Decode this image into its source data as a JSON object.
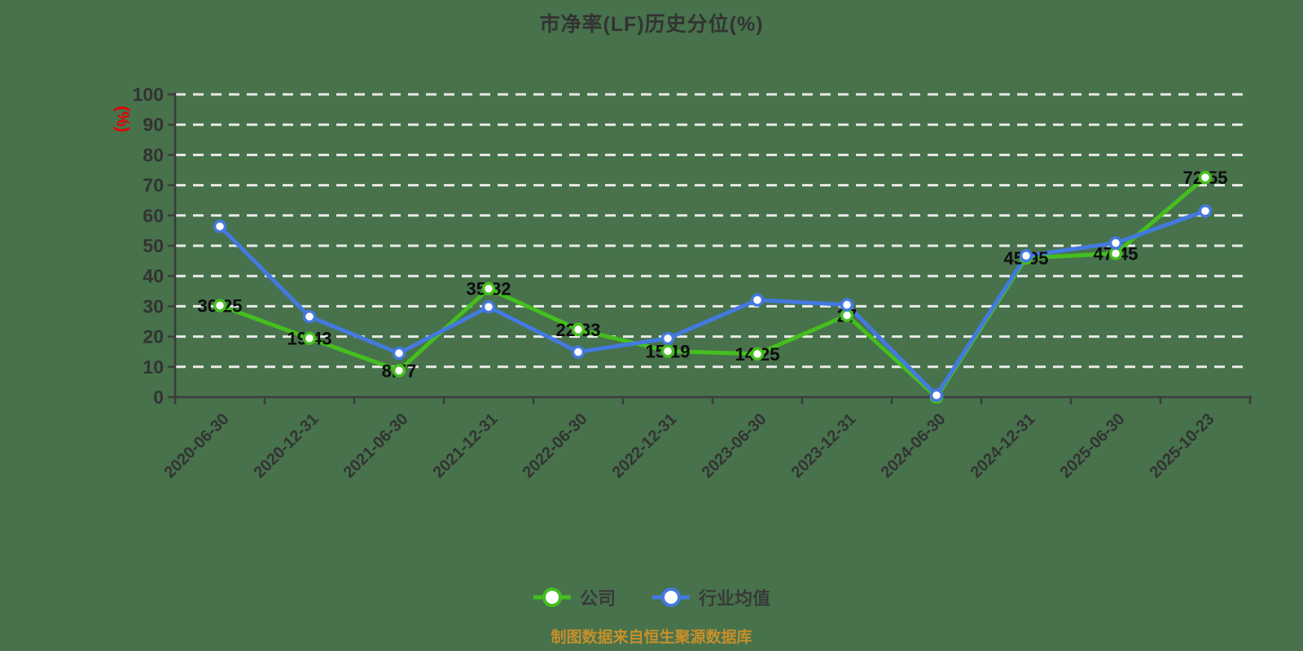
{
  "title": "市净率(LF)历史分位(%)",
  "source_note": "制图数据来自恒生聚源数据库",
  "y_axis": {
    "unit_label": "(%)"
  },
  "colors": {
    "background": "#47724C",
    "company_line": "#45BE1F",
    "industry_line": "#4479DF",
    "gridline": "#F2F2F2",
    "axis": "#3C3C3C",
    "tick_text": "#333333",
    "data_label": "#0D0D0D",
    "y_unit_red": "#E60000",
    "source_orange": "#C78F2B",
    "marker_fill": "#FFFFFF"
  },
  "chart_data": {
    "type": "line",
    "title": "市净率(LF)历史分位(%)",
    "xlabel": "",
    "ylabel": "(%)",
    "ylim": [
      0,
      100
    ],
    "ytick_step": 10,
    "grid": "horizontal-dashed",
    "legend_position": "bottom",
    "categories": [
      "2020-06-30",
      "2020-12-31",
      "2021-06-30",
      "2021-12-31",
      "2022-06-30",
      "2022-12-31",
      "2023-06-30",
      "2023-12-31",
      "2024-06-30",
      "2024-12-31",
      "2025-06-30",
      "2025-10-23"
    ],
    "series": [
      {
        "name": "公司",
        "color": "#45BE1F",
        "values": [
          30.25,
          19.43,
          8.77,
          35.82,
          22.33,
          15.19,
          14.25,
          27,
          0,
          45.95,
          47.45,
          72.55
        ],
        "point_labels": [
          "30.25",
          "19.43",
          "8.77",
          "35.82",
          "22.33",
          "15.19",
          "14.25",
          "27",
          "0",
          "45.95",
          "47.45",
          "72.55"
        ]
      },
      {
        "name": "行业均值",
        "color": "#4479DF",
        "values": [
          56.4,
          26.6,
          14.5,
          29.8,
          14.9,
          19.4,
          32.1,
          30.5,
          0.6,
          46.7,
          50.9,
          61.5
        ],
        "point_labels": []
      }
    ]
  }
}
